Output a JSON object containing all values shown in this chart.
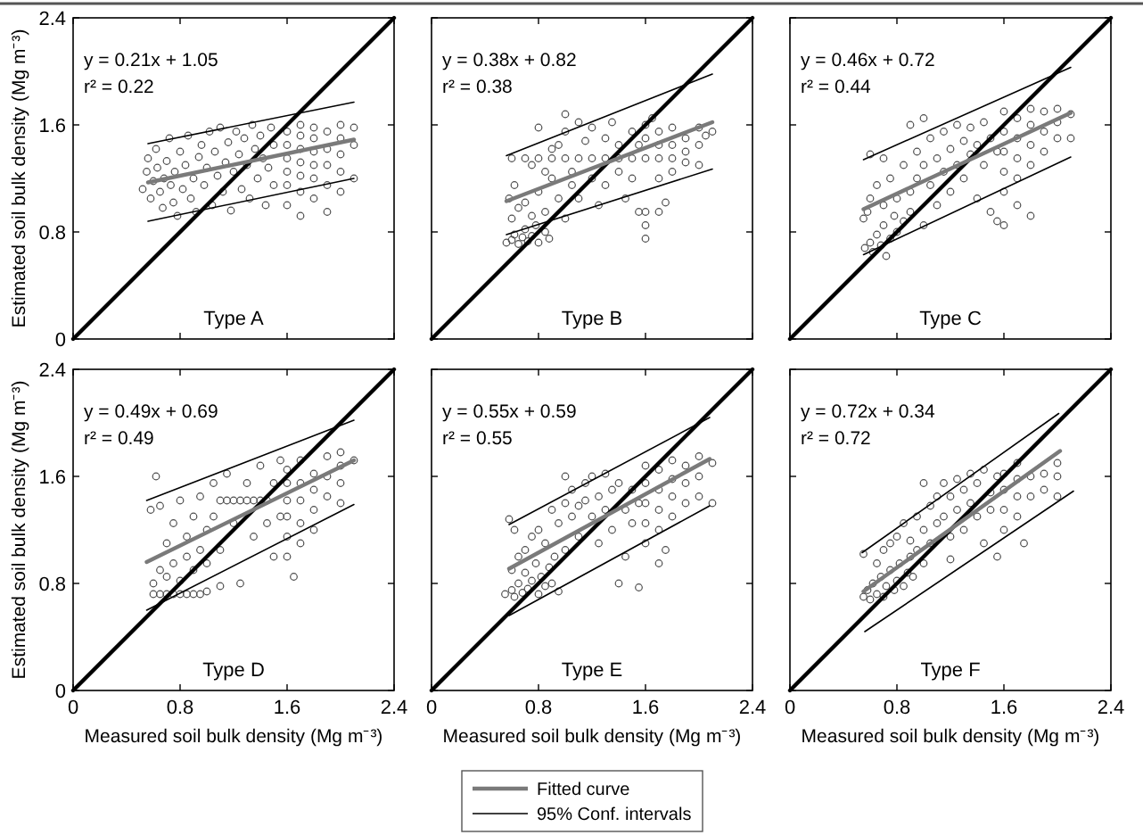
{
  "chart_data": [
    {
      "type": "scatter",
      "title": "Type A",
      "annotations": [
        "y = 0.21x + 1.05",
        "r² = 0.22"
      ],
      "ylabel": "Estimated soil bulk density (Mg m⁻³)",
      "xlim": [
        0,
        2.4
      ],
      "ylim": [
        0,
        2.4
      ],
      "xticks": [
        0,
        0.8,
        1.6,
        2.4
      ],
      "yticks": [
        0,
        0.8,
        1.6,
        2.4
      ],
      "tick_labels": "y",
      "series": [
        {
          "type": "scatter",
          "marker": "circle",
          "color": "#4d4d4d",
          "x": [
            0.52,
            0.55,
            0.56,
            0.58,
            0.6,
            0.62,
            0.63,
            0.65,
            0.67,
            0.68,
            0.7,
            0.72,
            0.73,
            0.75,
            0.76,
            0.78,
            0.8,
            0.82,
            0.84,
            0.86,
            0.88,
            0.9,
            0.92,
            0.94,
            0.96,
            0.98,
            1.0,
            1.02,
            1.04,
            1.06,
            1.08,
            1.1,
            1.12,
            1.14,
            1.16,
            1.18,
            1.2,
            1.22,
            1.24,
            1.26,
            1.28,
            1.3,
            1.32,
            1.34,
            1.36,
            1.38,
            1.4,
            1.42,
            1.44,
            1.46,
            1.48,
            1.5,
            1.5,
            1.6,
            1.6,
            1.6,
            1.6,
            1.6,
            1.6,
            1.7,
            1.7,
            1.7,
            1.7,
            1.7,
            1.7,
            1.7,
            1.8,
            1.8,
            1.8,
            1.8,
            1.8,
            1.8,
            1.9,
            1.9,
            1.9,
            1.9,
            1.9,
            2.0,
            2.0,
            2.0,
            2.0,
            2.0,
            2.1,
            2.1,
            2.1
          ],
          "values": [
            1.12,
            1.25,
            1.35,
            1.05,
            1.18,
            1.42,
            1.28,
            1.1,
            0.98,
            1.2,
            1.33,
            1.5,
            1.15,
            1.02,
            1.25,
            0.92,
            1.4,
            1.12,
            1.3,
            1.52,
            1.05,
            1.2,
            0.95,
            1.36,
            1.45,
            1.15,
            1.28,
            1.55,
            1.0,
            1.4,
            1.22,
            1.58,
            1.1,
            1.32,
            1.47,
            0.96,
            1.25,
            1.55,
            1.38,
            1.12,
            1.5,
            1.3,
            1.05,
            1.6,
            1.42,
            1.2,
            1.52,
            1.35,
            1.0,
            1.28,
            1.58,
            1.45,
            1.15,
            1.0,
            1.15,
            1.25,
            1.35,
            1.45,
            1.55,
            0.92,
            1.1,
            1.22,
            1.32,
            1.42,
            1.52,
            1.6,
            1.05,
            1.2,
            1.3,
            1.4,
            1.5,
            1.58,
            0.95,
            1.15,
            1.3,
            1.42,
            1.55,
            1.1,
            1.25,
            1.38,
            1.5,
            1.6,
            1.2,
            1.45,
            1.58
          ]
        },
        {
          "type": "line",
          "color": "#000000",
          "x": [
            0,
            2.4
          ],
          "values": [
            0,
            2.4
          ]
        },
        {
          "type": "line",
          "color": "#7a7a7a",
          "x": [
            0.56,
            2.1
          ],
          "values": [
            1.17,
            1.49
          ]
        },
        {
          "type": "line",
          "color": "#000000",
          "x": [
            0.56,
            2.1
          ],
          "values": [
            1.46,
            1.77
          ]
        },
        {
          "type": "line",
          "color": "#000000",
          "x": [
            0.56,
            2.1
          ],
          "values": [
            0.88,
            1.2
          ]
        }
      ]
    },
    {
      "type": "scatter",
      "title": "Type B",
      "annotations": [
        "y = 0.38x + 0.82",
        "r² = 0.38"
      ],
      "xlim": [
        0,
        2.4
      ],
      "ylim": [
        0,
        2.4
      ],
      "xticks": [
        0,
        0.8,
        1.6,
        2.4
      ],
      "yticks": [
        0,
        0.8,
        1.6,
        2.4
      ],
      "tick_labels": false,
      "series": [
        {
          "type": "scatter",
          "marker": "circle",
          "color": "#4d4d4d",
          "x": [
            0.6,
            0.7,
            0.8,
            0.9,
            1.0,
            1.1,
            1.2,
            1.3,
            1.4,
            1.5,
            1.6,
            1.7,
            1.8,
            1.9,
            0.56,
            0.6,
            0.62,
            0.65,
            0.68,
            0.7,
            0.72,
            0.75,
            0.78,
            0.8,
            0.85,
            0.88,
            0.6,
            0.65,
            0.58,
            0.7,
            0.75,
            0.62,
            0.8,
            0.85,
            0.9,
            0.95,
            1.0,
            1.05,
            0.95,
            1.0,
            1.05,
            1.1,
            1.1,
            1.15,
            1.2,
            1.2,
            1.25,
            1.3,
            1.3,
            1.35,
            1.4,
            1.4,
            1.45,
            1.5,
            1.5,
            1.55,
            1.0,
            0.8,
            0.75,
            0.9,
            0.85,
            1.55,
            1.6,
            1.6,
            1.6,
            1.6,
            1.6,
            1.7,
            1.7,
            1.7,
            1.7,
            1.8,
            1.8,
            1.8,
            1.9,
            1.9,
            2.0,
            2.0,
            2.0,
            2.05,
            1.65,
            1.75,
            2.1
          ],
          "values": [
            1.35,
            1.35,
            1.35,
            1.35,
            1.35,
            1.35,
            1.35,
            1.35,
            1.35,
            1.35,
            1.35,
            1.35,
            1.35,
            1.32,
            0.72,
            0.74,
            0.78,
            0.71,
            0.76,
            0.82,
            0.73,
            0.77,
            0.85,
            0.72,
            0.8,
            0.75,
            0.9,
            0.98,
            1.05,
            1.02,
            0.92,
            1.15,
            1.1,
            0.95,
            1.2,
            1.05,
            0.9,
            1.15,
            1.45,
            1.55,
            1.25,
            1.62,
            1.05,
            1.48,
            1.2,
            1.58,
            1.0,
            1.5,
            1.15,
            1.62,
            1.25,
            1.45,
            1.05,
            1.55,
            1.2,
            0.95,
            1.68,
            1.58,
            1.3,
            1.42,
            1.25,
            1.45,
            0.75,
            0.85,
            0.95,
            1.5,
            1.6,
            1.45,
            1.55,
            1.2,
            0.95,
            1.25,
            1.45,
            1.58,
            1.4,
            1.5,
            1.3,
            1.45,
            1.58,
            1.52,
            1.65,
            1.02,
            1.55
          ]
        },
        {
          "type": "line",
          "color": "#000000",
          "x": [
            0,
            2.4
          ],
          "values": [
            0,
            2.4
          ]
        },
        {
          "type": "line",
          "color": "#7a7a7a",
          "x": [
            0.56,
            2.1
          ],
          "values": [
            1.03,
            1.62
          ]
        },
        {
          "type": "line",
          "color": "#000000",
          "x": [
            0.56,
            2.1
          ],
          "values": [
            1.37,
            1.98
          ]
        },
        {
          "type": "line",
          "color": "#000000",
          "x": [
            0.56,
            2.1
          ],
          "values": [
            0.78,
            1.27
          ]
        }
      ]
    },
    {
      "type": "scatter",
      "title": "Type C",
      "annotations": [
        "y = 0.46x + 0.72",
        "r² = 0.44"
      ],
      "xlim": [
        0,
        2.4
      ],
      "ylim": [
        0,
        2.4
      ],
      "xticks": [
        0,
        0.8,
        1.6,
        2.4
      ],
      "yticks": [
        0,
        0.8,
        1.6,
        2.4
      ],
      "tick_labels": false,
      "series": [
        {
          "type": "scatter",
          "marker": "circle",
          "color": "#4d4d4d",
          "x": [
            0.56,
            0.6,
            0.62,
            0.65,
            0.68,
            0.7,
            0.72,
            0.75,
            0.78,
            0.8,
            0.55,
            0.6,
            0.58,
            0.65,
            0.7,
            0.75,
            0.8,
            0.85,
            0.85,
            0.9,
            0.9,
            0.95,
            0.95,
            1.0,
            1.0,
            1.05,
            1.05,
            1.1,
            1.1,
            1.15,
            1.15,
            1.2,
            1.2,
            1.25,
            1.25,
            1.3,
            1.3,
            1.35,
            1.35,
            1.4,
            1.4,
            1.45,
            1.45,
            1.5,
            1.5,
            1.55,
            1.55,
            0.7,
            0.9,
            1.0,
            0.6,
            1.6,
            1.6,
            1.6,
            1.6,
            1.6,
            1.6,
            1.7,
            1.7,
            1.7,
            1.7,
            1.7,
            1.8,
            1.8,
            1.8,
            1.8,
            1.8,
            1.9,
            1.9,
            1.9,
            2.0,
            2.0,
            2.0,
            2.1,
            2.1
          ],
          "values": [
            0.68,
            0.72,
            0.65,
            0.78,
            0.7,
            0.85,
            0.62,
            0.75,
            0.92,
            0.8,
            0.9,
            1.05,
            0.95,
            1.15,
            1.0,
            1.2,
            1.05,
            0.88,
            1.3,
            1.1,
            0.95,
            1.4,
            1.2,
            1.3,
            0.85,
            1.15,
            1.5,
            1.35,
            1.0,
            1.55,
            1.25,
            1.42,
            1.1,
            1.6,
            1.3,
            1.48,
            1.2,
            1.58,
            1.38,
            1.45,
            1.05,
            1.62,
            1.3,
            1.5,
            0.95,
            1.4,
            0.88,
            1.35,
            1.6,
            1.65,
            1.38,
            0.85,
            1.1,
            1.25,
            1.4,
            1.55,
            1.7,
            1.0,
            1.2,
            1.35,
            1.5,
            1.65,
            0.92,
            1.3,
            1.45,
            1.6,
            1.72,
            1.4,
            1.55,
            1.7,
            1.5,
            1.62,
            1.72,
            1.5,
            1.68
          ]
        },
        {
          "type": "line",
          "color": "#000000",
          "x": [
            0,
            2.4
          ],
          "values": [
            0,
            2.4
          ]
        },
        {
          "type": "line",
          "color": "#7a7a7a",
          "x": [
            0.55,
            2.1
          ],
          "values": [
            0.97,
            1.69
          ]
        },
        {
          "type": "line",
          "color": "#000000",
          "x": [
            0.55,
            2.1
          ],
          "values": [
            1.34,
            2.03
          ]
        },
        {
          "type": "line",
          "color": "#000000",
          "x": [
            0.55,
            2.1
          ],
          "values": [
            0.63,
            1.36
          ]
        }
      ]
    },
    {
      "type": "scatter",
      "title": "Type D",
      "annotations": [
        "y = 0.49x + 0.69",
        "r² = 0.49"
      ],
      "xlabel": "Measured soil bulk density (Mg m⁻³)",
      "ylabel": "Estimated soil bulk density (Mg m⁻³)",
      "xlim": [
        0,
        2.4
      ],
      "ylim": [
        0,
        2.4
      ],
      "xticks": [
        0,
        0.8,
        1.6,
        2.4
      ],
      "yticks": [
        0,
        0.8,
        1.6,
        2.4
      ],
      "series": [
        {
          "type": "scatter",
          "marker": "circle",
          "color": "#4d4d4d",
          "x": [
            0.6,
            0.65,
            0.7,
            0.75,
            0.8,
            0.85,
            0.9,
            0.95,
            1.0,
            0.6,
            0.65,
            0.7,
            0.75,
            0.8,
            0.85,
            0.58,
            0.62,
            0.65,
            0.7,
            0.75,
            0.8,
            0.85,
            0.9,
            0.9,
            0.95,
            0.95,
            1.0,
            1.0,
            1.05,
            1.05,
            1.1,
            1.15,
            1.2,
            1.25,
            1.3,
            1.35,
            1.4,
            1.45,
            1.1,
            1.15,
            1.2,
            1.25,
            1.3,
            1.35,
            1.4,
            1.45,
            1.5,
            1.5,
            1.55,
            1.55,
            1.1,
            1.6,
            1.6,
            1.6,
            1.6,
            1.6,
            1.6,
            1.65,
            1.7,
            1.7,
            1.7,
            1.7,
            1.7,
            1.8,
            1.8,
            1.8,
            1.8,
            1.9,
            1.9,
            1.9,
            2.0,
            2.0,
            2.0,
            2.0,
            2.1
          ],
          "values": [
            0.72,
            0.72,
            0.72,
            0.72,
            0.72,
            0.72,
            0.72,
            0.72,
            0.74,
            0.8,
            0.9,
            0.85,
            0.95,
            0.82,
            1.0,
            1.35,
            1.6,
            1.38,
            1.1,
            1.25,
            1.42,
            1.15,
            1.3,
            0.9,
            1.45,
            1.05,
            1.2,
            0.95,
            1.55,
            1.3,
            1.42,
            1.42,
            1.42,
            1.42,
            1.42,
            1.42,
            1.42,
            1.42,
            1.05,
            1.62,
            1.25,
            0.8,
            1.55,
            1.15,
            1.68,
            1.25,
            1.55,
            1.0,
            1.3,
            1.72,
            0.78,
            1.0,
            1.15,
            1.3,
            1.42,
            1.55,
            1.65,
            0.85,
            1.1,
            1.25,
            1.42,
            1.55,
            1.72,
            1.2,
            1.35,
            1.5,
            1.62,
            1.45,
            1.6,
            1.75,
            1.4,
            1.55,
            1.68,
            1.78,
            1.72
          ]
        },
        {
          "type": "line",
          "color": "#000000",
          "x": [
            0,
            2.4
          ],
          "values": [
            0,
            2.4
          ]
        },
        {
          "type": "line",
          "color": "#7a7a7a",
          "x": [
            0.55,
            2.1
          ],
          "values": [
            0.96,
            1.72
          ]
        },
        {
          "type": "line",
          "color": "#000000",
          "x": [
            0.55,
            2.1
          ],
          "values": [
            1.42,
            2.02
          ]
        },
        {
          "type": "line",
          "color": "#000000",
          "x": [
            0.55,
            2.1
          ],
          "values": [
            0.6,
            1.39
          ]
        }
      ]
    },
    {
      "type": "scatter",
      "title": "Type E",
      "annotations": [
        "y = 0.55x + 0.59",
        "r² = 0.55"
      ],
      "xlabel": "Measured soil bulk density (Mg m⁻³)",
      "xlim": [
        0,
        2.4
      ],
      "ylim": [
        0,
        2.4
      ],
      "xticks": [
        0,
        0.8,
        1.6,
        2.4
      ],
      "yticks": [
        0,
        0.8,
        1.6,
        2.4
      ],
      "tick_labels": "x",
      "legend": "bottom",
      "series": [
        {
          "type": "scatter",
          "marker": "circle",
          "color": "#4d4d4d",
          "x": [
            0.55,
            0.6,
            0.62,
            0.65,
            0.68,
            0.7,
            0.72,
            0.75,
            0.78,
            0.8,
            0.82,
            0.85,
            0.88,
            0.9,
            0.92,
            0.95,
            0.6,
            0.65,
            0.7,
            0.75,
            0.58,
            0.62,
            0.8,
            0.85,
            0.9,
            0.95,
            1.0,
            1.0,
            1.05,
            1.05,
            1.1,
            1.1,
            1.15,
            1.15,
            1.2,
            1.2,
            1.25,
            1.25,
            1.3,
            1.3,
            1.35,
            1.35,
            1.4,
            1.4,
            1.45,
            1.45,
            1.5,
            1.5,
            1.55,
            1.55,
            1.0,
            1.6,
            1.6,
            1.6,
            1.6,
            1.6,
            1.7,
            1.7,
            1.7,
            1.7,
            1.7,
            1.75,
            1.8,
            1.8,
            1.8,
            1.8,
            1.9,
            1.9,
            1.9,
            2.0,
            2.0,
            2.0,
            2.1,
            2.1
          ],
          "values": [
            0.72,
            0.75,
            0.7,
            0.8,
            0.73,
            0.88,
            0.76,
            0.82,
            0.95,
            0.72,
            0.85,
            0.78,
            0.92,
            0.8,
            1.0,
            0.74,
            0.9,
            1.0,
            1.05,
            1.15,
            1.28,
            1.2,
            1.2,
            1.1,
            1.35,
            1.25,
            1.4,
            1.05,
            1.5,
            1.3,
            1.38,
            1.15,
            1.55,
            1.42,
            1.3,
            1.6,
            1.45,
            1.1,
            1.62,
            1.35,
            1.5,
            1.2,
            1.55,
            0.8,
            1.35,
            1.0,
            1.5,
            1.25,
            0.77,
            1.4,
            1.6,
            1.1,
            1.25,
            1.4,
            1.55,
            1.68,
            0.95,
            1.2,
            1.35,
            1.5,
            1.65,
            1.05,
            1.3,
            1.45,
            1.58,
            1.72,
            1.4,
            1.55,
            1.68,
            1.45,
            1.6,
            1.75,
            1.4,
            1.7
          ]
        },
        {
          "type": "line",
          "color": "#000000",
          "x": [
            0,
            2.4
          ],
          "values": [
            0,
            2.4
          ]
        },
        {
          "type": "line",
          "name": "Fitted curve",
          "color": "#7a7a7a",
          "x": [
            0.58,
            2.08
          ],
          "values": [
            0.91,
            1.73
          ]
        },
        {
          "type": "line",
          "name": "95% Conf. intervals",
          "color": "#000000",
          "x": [
            0.58,
            2.08
          ],
          "values": [
            1.24,
            2.04
          ]
        },
        {
          "type": "line",
          "color": "#000000",
          "x": [
            0.58,
            2.08
          ],
          "values": [
            0.56,
            1.38
          ]
        }
      ]
    },
    {
      "type": "scatter",
      "title": "Type F",
      "annotations": [
        "y = 0.72x + 0.34",
        "r² = 0.72"
      ],
      "xlabel": "Measured soil bulk density (Mg m⁻³)",
      "xlim": [
        0,
        2.4
      ],
      "ylim": [
        0,
        2.4
      ],
      "xticks": [
        0,
        0.8,
        1.6,
        2.4
      ],
      "yticks": [
        0,
        0.8,
        1.6,
        2.4
      ],
      "tick_labels": "x",
      "series": [
        {
          "type": "scatter",
          "marker": "circle",
          "color": "#4d4d4d",
          "x": [
            0.55,
            0.58,
            0.6,
            0.62,
            0.65,
            0.68,
            0.7,
            0.72,
            0.75,
            0.78,
            0.8,
            0.82,
            0.85,
            0.88,
            0.9,
            0.55,
            0.65,
            0.7,
            0.75,
            0.8,
            0.85,
            0.9,
            0.92,
            0.95,
            0.95,
            1.0,
            1.0,
            1.05,
            1.05,
            1.1,
            1.1,
            1.15,
            1.15,
            1.2,
            1.2,
            1.25,
            1.25,
            1.3,
            1.3,
            1.35,
            1.35,
            1.4,
            1.4,
            1.45,
            1.45,
            1.5,
            1.5,
            1.55,
            1.55,
            1.0,
            1.2,
            1.6,
            1.6,
            1.6,
            1.6,
            1.7,
            1.7,
            1.7,
            1.7,
            1.75,
            1.8,
            1.8,
            1.9,
            1.9,
            2.0,
            2.0,
            2.0
          ],
          "values": [
            0.7,
            0.75,
            0.68,
            0.8,
            0.72,
            0.85,
            0.7,
            0.78,
            0.9,
            0.75,
            0.82,
            0.95,
            0.78,
            0.88,
            1.0,
            1.02,
            0.95,
            1.05,
            1.1,
            1.15,
            1.25,
            1.12,
            0.85,
            1.3,
            1.05,
            1.2,
            0.95,
            1.38,
            1.1,
            1.45,
            1.25,
            1.55,
            1.3,
            1.45,
            1.15,
            1.58,
            1.35,
            1.5,
            1.2,
            1.62,
            1.4,
            1.55,
            1.3,
            1.65,
            1.1,
            1.48,
            1.35,
            1.6,
            1.0,
            1.55,
            0.98,
            1.2,
            1.35,
            1.5,
            1.62,
            1.3,
            1.45,
            1.58,
            1.7,
            1.1,
            1.45,
            1.6,
            1.5,
            1.62,
            1.45,
            1.6,
            1.7
          ]
        },
        {
          "type": "line",
          "color": "#000000",
          "x": [
            0,
            2.4
          ],
          "values": [
            0,
            2.4
          ]
        },
        {
          "type": "line",
          "color": "#7a7a7a",
          "x": [
            0.55,
            2.02
          ],
          "values": [
            0.74,
            1.79
          ]
        },
        {
          "type": "line",
          "color": "#000000",
          "x": [
            0.54,
            2.01
          ],
          "values": [
            1.03,
            2.07
          ]
        },
        {
          "type": "line",
          "color": "#000000",
          "x": [
            0.56,
            2.12
          ],
          "values": [
            0.44,
            1.49
          ]
        }
      ]
    }
  ]
}
